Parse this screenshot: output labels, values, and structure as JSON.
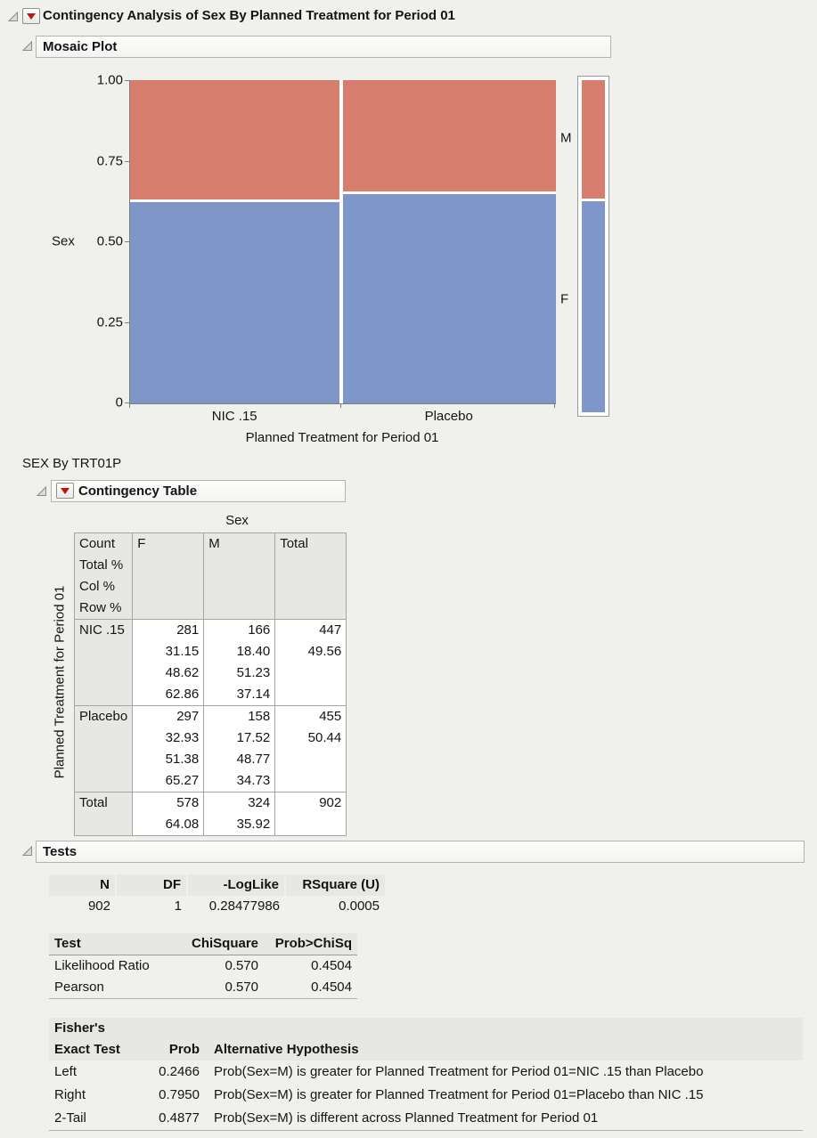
{
  "window": {
    "title": "Contingency Analysis of Sex By Planned Treatment for Period 01"
  },
  "sections": {
    "mosaic": {
      "title": "Mosaic Plot"
    },
    "contingency": {
      "title": "Contingency Table"
    },
    "tests": {
      "title": "Tests"
    }
  },
  "subtitle": "SEX By TRT01P",
  "chart_data": {
    "type": "mosaic",
    "title": "Mosaic Plot",
    "xlabel": "Planned Treatment for Period 01",
    "ylabel": "Sex",
    "y_ticks": [
      "1.00",
      "0.75",
      "0.50",
      "0.25",
      "0"
    ],
    "ylim": [
      0,
      1
    ],
    "categories": [
      "NIC .15",
      "Placebo"
    ],
    "category_shares_pct": [
      49.56,
      50.44
    ],
    "series": [
      {
        "name": "M",
        "color": "#d77d6d",
        "values_pct": [
          37.14,
          34.73
        ],
        "overall_pct": 35.92
      },
      {
        "name": "F",
        "color": "#7e96c8",
        "values_pct": [
          62.86,
          65.27
        ],
        "overall_pct": 64.08
      }
    ],
    "legend_position": "right"
  },
  "contingency_table": {
    "column_variable": "Sex",
    "row_variable": "Planned Treatment for Period 01",
    "cell_stats": [
      "Count",
      "Total %",
      "Col %",
      "Row %"
    ],
    "columns": [
      "F",
      "M",
      "Total"
    ],
    "rows": [
      {
        "label": "NIC .15",
        "cells": [
          [
            "281",
            "31.15",
            "48.62",
            "62.86"
          ],
          [
            "166",
            "18.40",
            "51.23",
            "37.14"
          ],
          [
            "447",
            "49.56"
          ]
        ]
      },
      {
        "label": "Placebo",
        "cells": [
          [
            "297",
            "32.93",
            "51.38",
            "65.27"
          ],
          [
            "158",
            "17.52",
            "48.77",
            "34.73"
          ],
          [
            "455",
            "50.44"
          ]
        ]
      },
      {
        "label": "Total",
        "cells": [
          [
            "578",
            "64.08"
          ],
          [
            "324",
            "35.92"
          ],
          [
            "902"
          ]
        ]
      }
    ]
  },
  "tests": {
    "summary": {
      "headers": [
        "N",
        "DF",
        "-LogLike",
        "RSquare (U)"
      ],
      "values": [
        "902",
        "1",
        "0.28477986",
        "0.0005"
      ]
    },
    "chi_square": {
      "headers": [
        "Test",
        "ChiSquare",
        "Prob>ChiSq"
      ],
      "rows": [
        {
          "test": "Likelihood Ratio",
          "chisquare": "0.570",
          "prob": "0.4504"
        },
        {
          "test": "Pearson",
          "chisquare": "0.570",
          "prob": "0.4504"
        }
      ]
    },
    "fisher": {
      "header_line1": "Fisher's",
      "header_line2": "Exact Test",
      "prob_header": "Prob",
      "hypothesis_header": "Alternative Hypothesis",
      "rows": [
        {
          "label": "Left",
          "prob": "0.2466",
          "hypothesis": "Prob(Sex=M) is greater for Planned Treatment for Period 01=NIC .15 than Placebo"
        },
        {
          "label": "Right",
          "prob": "0.7950",
          "hypothesis": "Prob(Sex=M) is greater for Planned Treatment for Period 01=Placebo than NIC .15"
        },
        {
          "label": "2-Tail",
          "prob": "0.4877",
          "hypothesis": "Prob(Sex=M) is different across Planned Treatment for Period 01"
        }
      ]
    }
  }
}
